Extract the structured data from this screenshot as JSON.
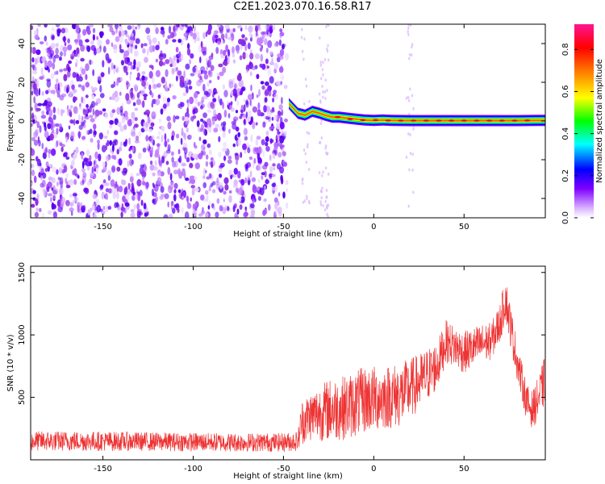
{
  "title": "C2E1.2023.070.16.58.R17",
  "chart_data": [
    {
      "type": "heatmap",
      "xlabel": "Height of straight line (km)",
      "ylabel": "Frequency (Hz)",
      "xlim": [
        -190,
        95
      ],
      "ylim": [
        -50,
        50
      ],
      "x_ticks": [
        -150,
        -100,
        -50,
        0,
        50
      ],
      "y_ticks": [
        -40,
        -20,
        0,
        20,
        40
      ],
      "noise_region_x": [
        -190,
        -48
      ],
      "signal_ridge": {
        "x": [
          -47,
          -45,
          -42,
          -38,
          -34,
          -30,
          -27,
          -23,
          -19,
          -15,
          -10,
          -5,
          0,
          5,
          10,
          20,
          30,
          40,
          50,
          60,
          70,
          80,
          90,
          95
        ],
        "y": [
          9,
          7,
          4,
          3,
          5,
          4,
          3,
          2,
          2,
          1.5,
          1,
          0.5,
          0.3,
          0.5,
          0.3,
          0.2,
          0.2,
          0.2,
          0.2,
          0.2,
          0.2,
          0.2,
          0.3,
          0.3
        ]
      },
      "colorbar": {
        "label": "Normalized spectral amplitude",
        "range": [
          0,
          0.92
        ],
        "ticks": [
          "0.0",
          "0.2",
          "0.4",
          "0.6",
          "0.8"
        ],
        "colors": [
          "#ffffff",
          "#7f00ff",
          "#0000ff",
          "#00ffff",
          "#00ff00",
          "#ffff00",
          "#ff8000",
          "#ff0000",
          "#ff1493"
        ]
      },
      "grid": false
    },
    {
      "type": "line",
      "xlabel": "Height of straight line (km)",
      "ylabel": "SNR (10 * v/v)",
      "xlim": [
        -190,
        95
      ],
      "ylim": [
        0,
        1550
      ],
      "x_ticks": [
        -150,
        -100,
        -50,
        0,
        50
      ],
      "y_ticks": [
        500,
        1000,
        1500
      ],
      "color": "#ee3333",
      "envelope": {
        "x": [
          -190,
          -160,
          -120,
          -80,
          -50,
          -42,
          -40,
          -35,
          -25,
          -15,
          -5,
          5,
          15,
          25,
          35,
          40,
          50,
          60,
          65,
          70,
          73,
          76,
          80,
          85,
          88,
          92,
          95
        ],
        "mean": [
          150,
          150,
          145,
          140,
          140,
          150,
          300,
          350,
          400,
          420,
          480,
          500,
          520,
          620,
          750,
          950,
          860,
          930,
          950,
          1100,
          1300,
          1050,
          750,
          450,
          400,
          520,
          650
        ],
        "spread": [
          80,
          80,
          75,
          75,
          75,
          80,
          180,
          200,
          250,
          260,
          270,
          260,
          260,
          230,
          200,
          170,
          170,
          160,
          150,
          160,
          180,
          170,
          150,
          150,
          150,
          180,
          200
        ]
      },
      "grid": false
    }
  ]
}
